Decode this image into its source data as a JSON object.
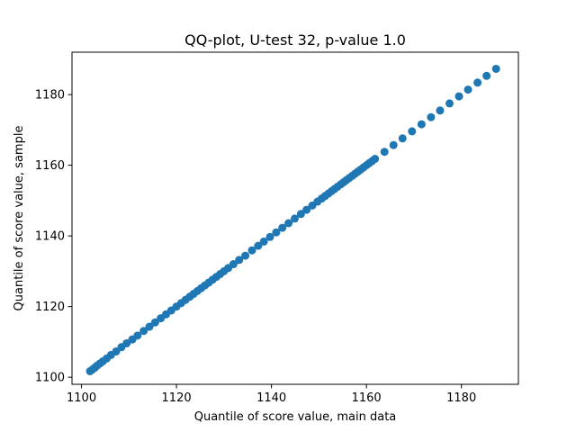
{
  "chart_data": {
    "type": "scatter",
    "title": "QQ-plot, U-test 32, p-value 1.0",
    "xlabel": "Quantile of score value, main data",
    "ylabel": "Quantile of score value, sample",
    "xlim": [
      1098,
      1192
    ],
    "ylim": [
      1098,
      1192
    ],
    "xticks": [
      1100,
      1120,
      1140,
      1160,
      1180
    ],
    "yticks": [
      1100,
      1120,
      1140,
      1160,
      1180
    ],
    "grid": false,
    "marker_color": "#1f77b4",
    "points": [
      [
        1101.8,
        1101.7
      ],
      [
        1102.3,
        1102.2
      ],
      [
        1102.8,
        1102.7
      ],
      [
        1103.3,
        1103.3
      ],
      [
        1103.9,
        1103.9
      ],
      [
        1104.5,
        1104.5
      ],
      [
        1105.3,
        1105.3
      ],
      [
        1106.2,
        1106.3
      ],
      [
        1107.3,
        1107.3
      ],
      [
        1108.4,
        1108.5
      ],
      [
        1109.5,
        1109.6
      ],
      [
        1110.7,
        1110.7
      ],
      [
        1111.8,
        1111.8
      ],
      [
        1113.1,
        1113.1
      ],
      [
        1114.3,
        1114.3
      ],
      [
        1115.5,
        1115.5
      ],
      [
        1116.7,
        1116.7
      ],
      [
        1117.8,
        1117.8
      ],
      [
        1118.9,
        1118.9
      ],
      [
        1120.0,
        1120.0
      ],
      [
        1121.0,
        1121.0
      ],
      [
        1121.9,
        1121.9
      ],
      [
        1122.8,
        1122.8
      ],
      [
        1123.6,
        1123.6
      ],
      [
        1124.4,
        1124.4
      ],
      [
        1125.2,
        1125.2
      ],
      [
        1126.0,
        1126.0
      ],
      [
        1126.8,
        1126.8
      ],
      [
        1127.6,
        1127.6
      ],
      [
        1128.4,
        1128.4
      ],
      [
        1129.2,
        1129.2
      ],
      [
        1130.0,
        1130.0
      ],
      [
        1130.9,
        1130.9
      ],
      [
        1132.0,
        1132.0
      ],
      [
        1133.2,
        1133.2
      ],
      [
        1134.5,
        1134.4
      ],
      [
        1135.9,
        1135.9
      ],
      [
        1137.2,
        1137.2
      ],
      [
        1138.4,
        1138.4
      ],
      [
        1139.7,
        1139.7
      ],
      [
        1141.0,
        1141.0
      ],
      [
        1142.3,
        1142.3
      ],
      [
        1143.6,
        1143.6
      ],
      [
        1144.9,
        1144.9
      ],
      [
        1146.2,
        1146.2
      ],
      [
        1147.4,
        1147.4
      ],
      [
        1148.6,
        1148.6
      ],
      [
        1149.7,
        1149.7
      ],
      [
        1150.6,
        1150.6
      ],
      [
        1151.3,
        1151.3
      ],
      [
        1152.0,
        1152.0
      ],
      [
        1152.7,
        1152.7
      ],
      [
        1153.3,
        1153.3
      ],
      [
        1153.9,
        1153.9
      ],
      [
        1154.6,
        1154.6
      ],
      [
        1155.2,
        1155.2
      ],
      [
        1155.8,
        1155.8
      ],
      [
        1156.4,
        1156.4
      ],
      [
        1157.0,
        1157.0
      ],
      [
        1157.6,
        1157.6
      ],
      [
        1158.2,
        1158.2
      ],
      [
        1158.8,
        1158.8
      ],
      [
        1159.4,
        1159.4
      ],
      [
        1160.0,
        1160.0
      ],
      [
        1160.6,
        1160.6
      ],
      [
        1161.2,
        1161.2
      ],
      [
        1161.8,
        1161.8
      ],
      [
        1163.8,
        1163.8
      ],
      [
        1165.7,
        1165.7
      ],
      [
        1167.6,
        1167.6
      ],
      [
        1169.6,
        1169.6
      ],
      [
        1171.6,
        1171.6
      ],
      [
        1173.6,
        1173.6
      ],
      [
        1175.5,
        1175.5
      ],
      [
        1177.5,
        1177.5
      ],
      [
        1179.5,
        1179.5
      ],
      [
        1181.4,
        1181.4
      ],
      [
        1183.4,
        1183.4
      ],
      [
        1185.3,
        1185.3
      ],
      [
        1187.3,
        1187.3
      ]
    ]
  }
}
